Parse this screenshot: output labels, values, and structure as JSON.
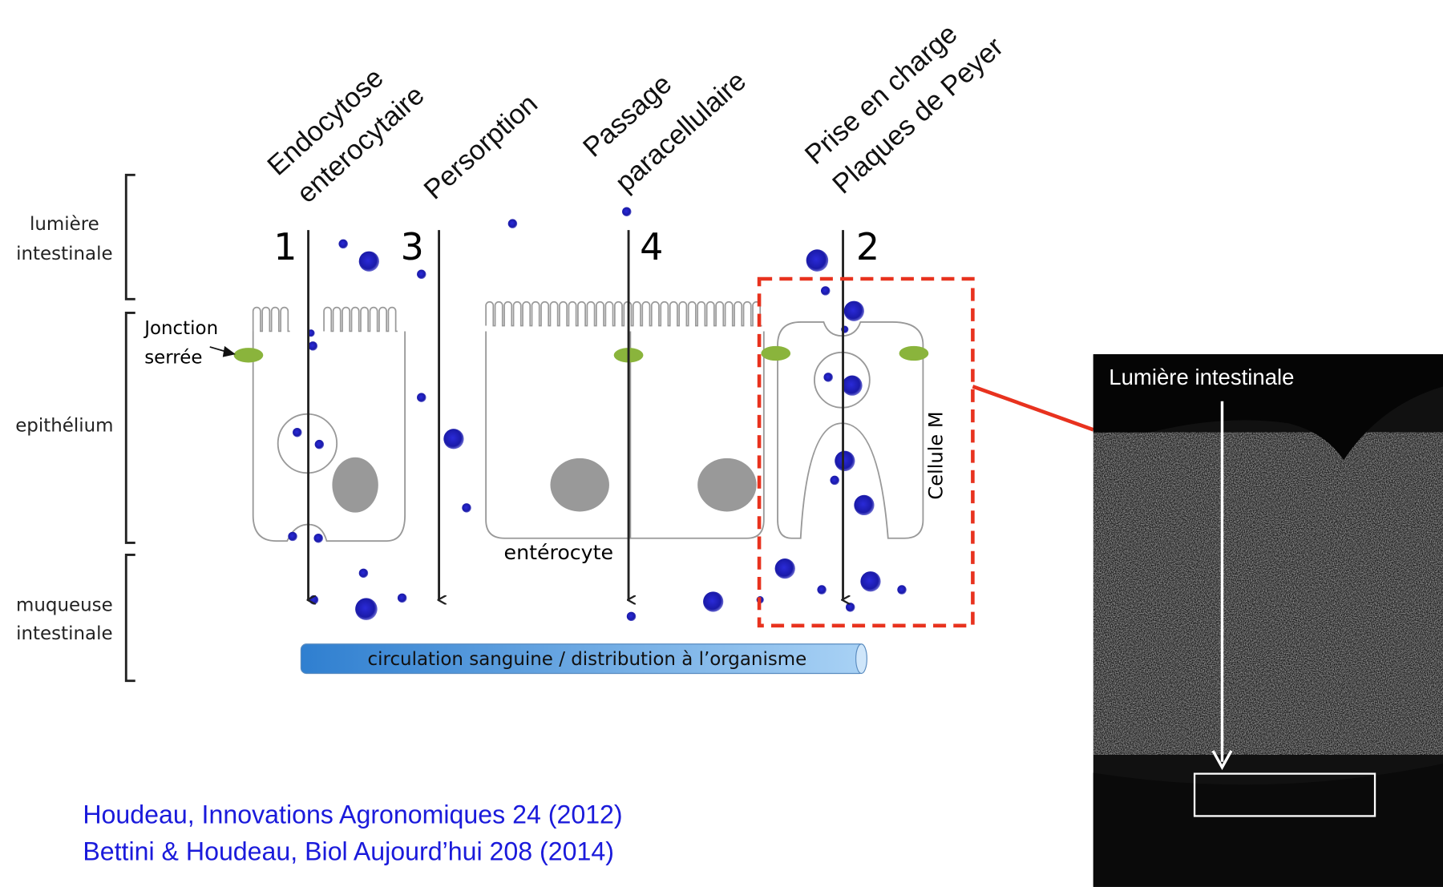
{
  "pathways": [
    {
      "number": "1",
      "label": [
        "Endocytose",
        "enterocytaire"
      ]
    },
    {
      "number": "3",
      "label": [
        "Persorption"
      ]
    },
    {
      "number": "4",
      "label": [
        "Passage",
        "paracellulaire"
      ]
    },
    {
      "number": "2",
      "label": [
        "Prise en charge",
        "Plaques de Peyer"
      ]
    }
  ],
  "layers": [
    [
      "lumière",
      "intestinale"
    ],
    [
      "epithélium"
    ],
    [
      "muqueuse",
      "intestinale"
    ]
  ],
  "junction_label": [
    "Jonction",
    "serrée"
  ],
  "enterocyte_label": "entérocyte",
  "m_cell_label": "Cellule M",
  "circulation_label": "circulation sanguine / distribution à l’organisme",
  "micrograph_label": "Lumière intestinale",
  "references": [
    "Houdeau, Innovations Agronomiques 24 (2012)",
    "Bettini & Houdeau, Biol Aujourd’hui 208 (2014)"
  ]
}
